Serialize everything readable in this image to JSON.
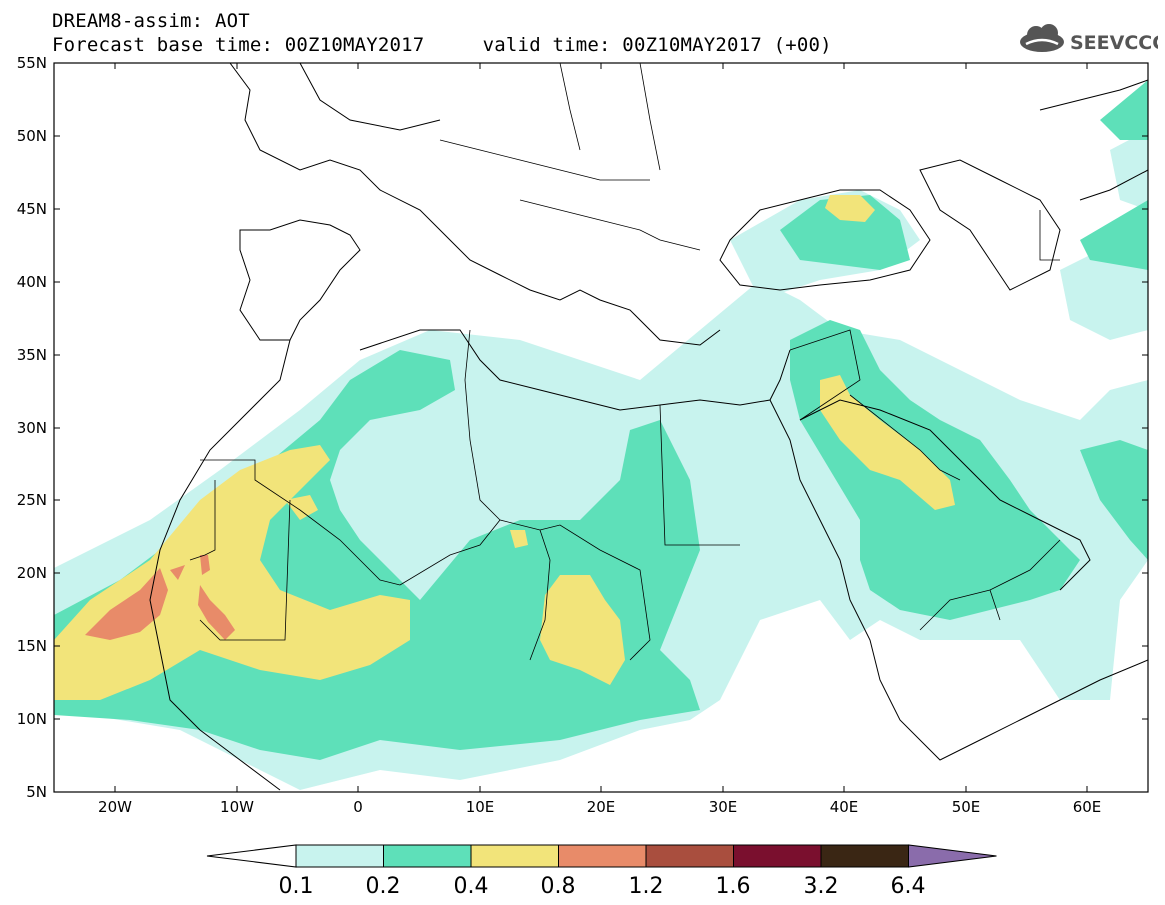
{
  "title": {
    "line1": "DREAM8-assim: AOT",
    "line2": "Forecast base time: 00Z10MAY2017     valid time: 00Z10MAY2017 (+00)"
  },
  "logo": {
    "text": "SEEVCCC",
    "icon": "cloud-icon"
  },
  "map": {
    "projection": "lat-lon",
    "lon_range": [
      -25,
      65
    ],
    "lat_range": [
      5,
      55
    ],
    "y_ticks": [
      "55N",
      "50N",
      "45N",
      "40N",
      "35N",
      "30N",
      "25N",
      "20N",
      "15N",
      "10N",
      "5N"
    ],
    "x_ticks": [
      "20W",
      "10W",
      "0",
      "10E",
      "20E",
      "30E",
      "40E",
      "50E",
      "60E"
    ]
  },
  "legend": {
    "labels": [
      "0.1",
      "0.2",
      "0.4",
      "0.8",
      "1.2",
      "1.6",
      "3.2",
      "6.4"
    ],
    "colors": [
      "#ffffff",
      "#c8f3ee",
      "#5ee0b9",
      "#f2e47a",
      "#e88b69",
      "#a94e3e",
      "#7a0f2e",
      "#3a2614",
      "#8a6cab"
    ]
  }
}
